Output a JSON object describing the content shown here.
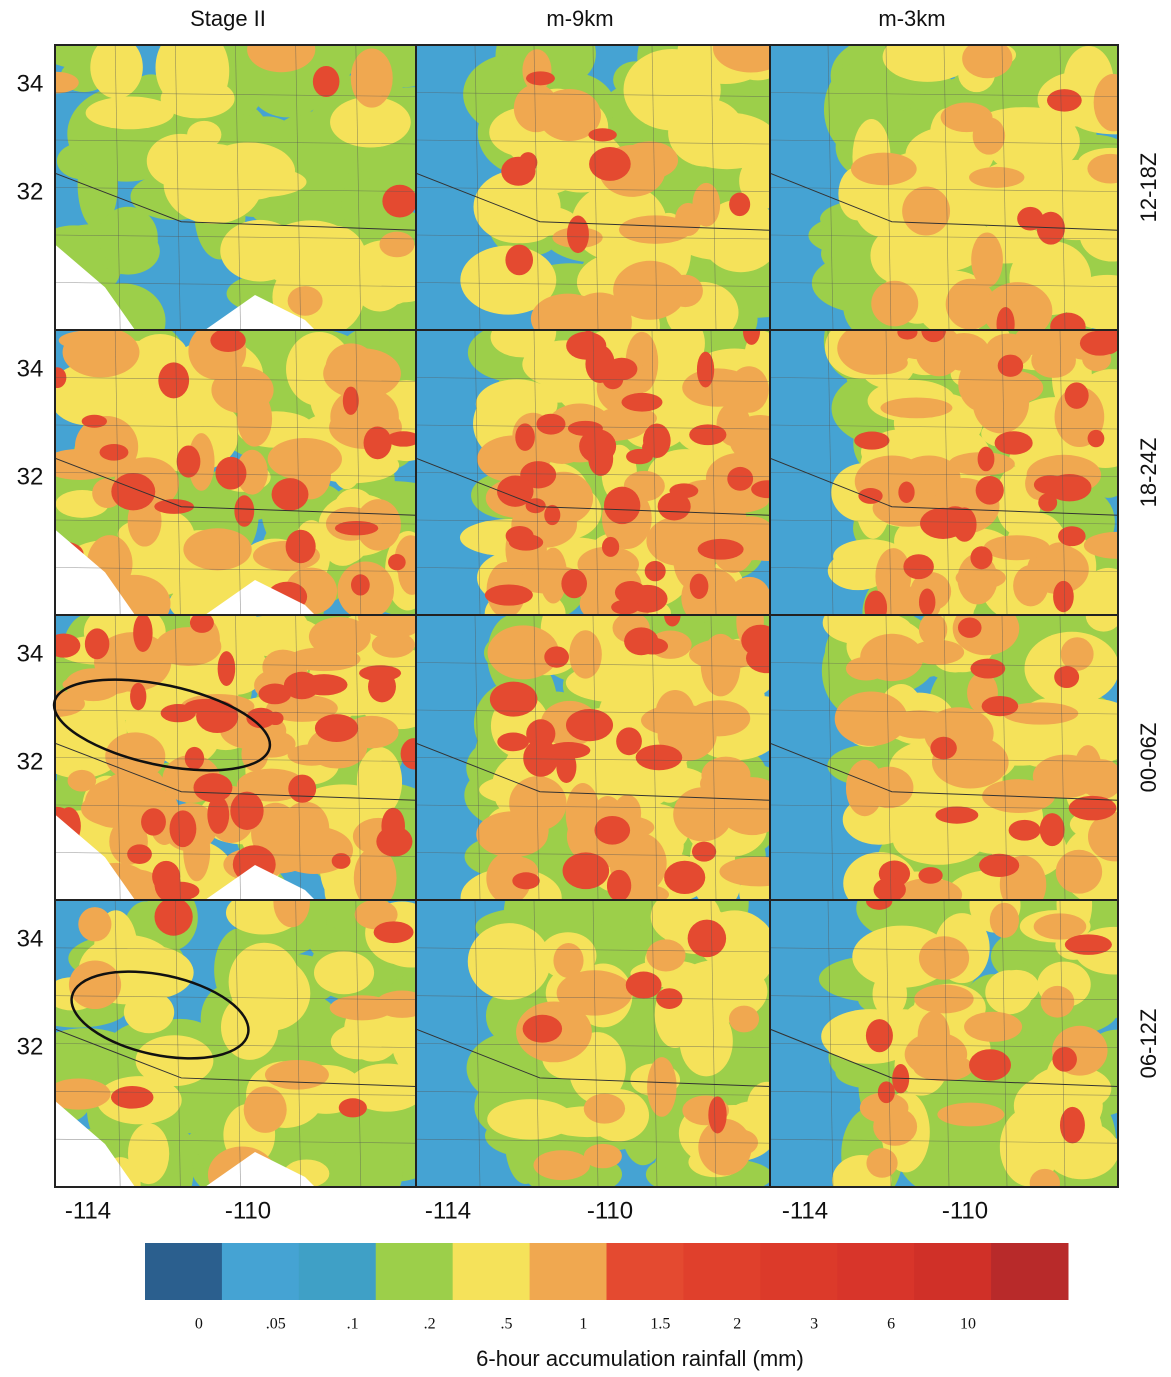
{
  "columns": [
    "Stage II",
    "m-9km",
    "m-3km"
  ],
  "rows": [
    "12-18Z",
    "18-24Z",
    "00-06Z",
    "06-12Z"
  ],
  "lat_ticks": [
    "34",
    "32"
  ],
  "lon_ticks": [
    "-114",
    "-110"
  ],
  "colorbar": {
    "colors": [
      "#2b5f8e",
      "#45a3d3",
      "#3fa0c6",
      "#9ccf4a",
      "#f5e25a",
      "#f0a850",
      "#e44a30",
      "#e0402c",
      "#dc3a2a",
      "#d8352a",
      "#d03028",
      "#b82a2a"
    ],
    "labels": [
      "0",
      ".05",
      ".1",
      ".2",
      ".5",
      "1",
      "1.5",
      "2",
      "3",
      "6",
      "10"
    ],
    "title": "6-hour accumulation rainfall (mm)"
  }
}
